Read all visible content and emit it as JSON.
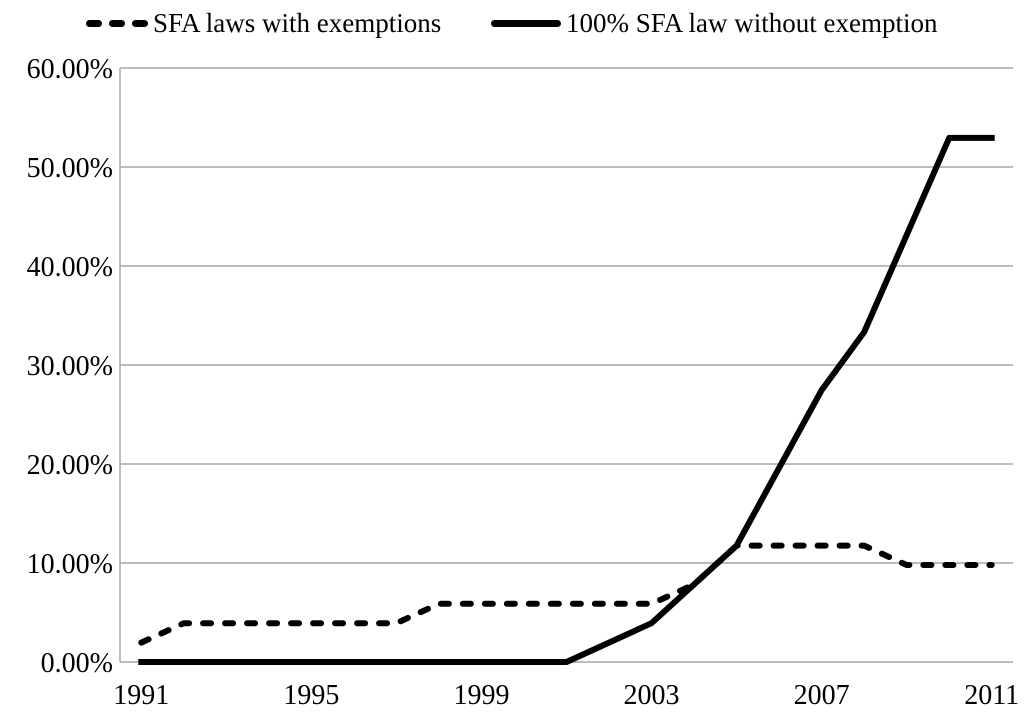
{
  "legend": {
    "items": [
      {
        "label": "SFA laws with exemptions",
        "style": "dashed"
      },
      {
        "label": "100% SFA law without exemption",
        "style": "solid"
      }
    ]
  },
  "chart_data": {
    "type": "line",
    "x": [
      1991,
      1992,
      1993,
      1994,
      1995,
      1996,
      1997,
      1998,
      1999,
      2000,
      2001,
      2002,
      2003,
      2004,
      2005,
      2006,
      2007,
      2008,
      2009,
      2010,
      2011
    ],
    "series": [
      {
        "name": "SFA laws with exemptions",
        "style": "dashed",
        "values": [
          1.96,
          3.92,
          3.92,
          3.92,
          3.92,
          3.92,
          3.92,
          5.88,
          5.88,
          5.88,
          5.88,
          5.88,
          5.88,
          7.84,
          11.76,
          11.76,
          11.76,
          11.76,
          9.8,
          9.8,
          9.8
        ]
      },
      {
        "name": "100% SFA law without exemption",
        "style": "solid",
        "values": [
          0,
          0,
          0,
          0,
          0,
          0,
          0,
          0,
          0,
          0,
          0,
          1.96,
          3.92,
          7.84,
          11.76,
          19.61,
          27.45,
          33.33,
          43.14,
          52.94,
          52.94
        ]
      }
    ],
    "title": "",
    "xlabel": "",
    "ylabel": "",
    "ylim": [
      0,
      60
    ],
    "ytick_step": 10,
    "ytick_labels": [
      "0.00%",
      "10.00%",
      "20.00%",
      "30.00%",
      "40.00%",
      "50.00%",
      "60.00%"
    ],
    "xtick_years": [
      1991,
      1995,
      1999,
      2003,
      2007,
      2011
    ],
    "xtick_labels": [
      "1991",
      "1995",
      "1999",
      "2003",
      "2007",
      "2011"
    ],
    "grid": true,
    "legend_position": "top",
    "colors": {
      "line": "#000000",
      "grid": "#a6a6a6",
      "background": "#ffffff"
    }
  }
}
